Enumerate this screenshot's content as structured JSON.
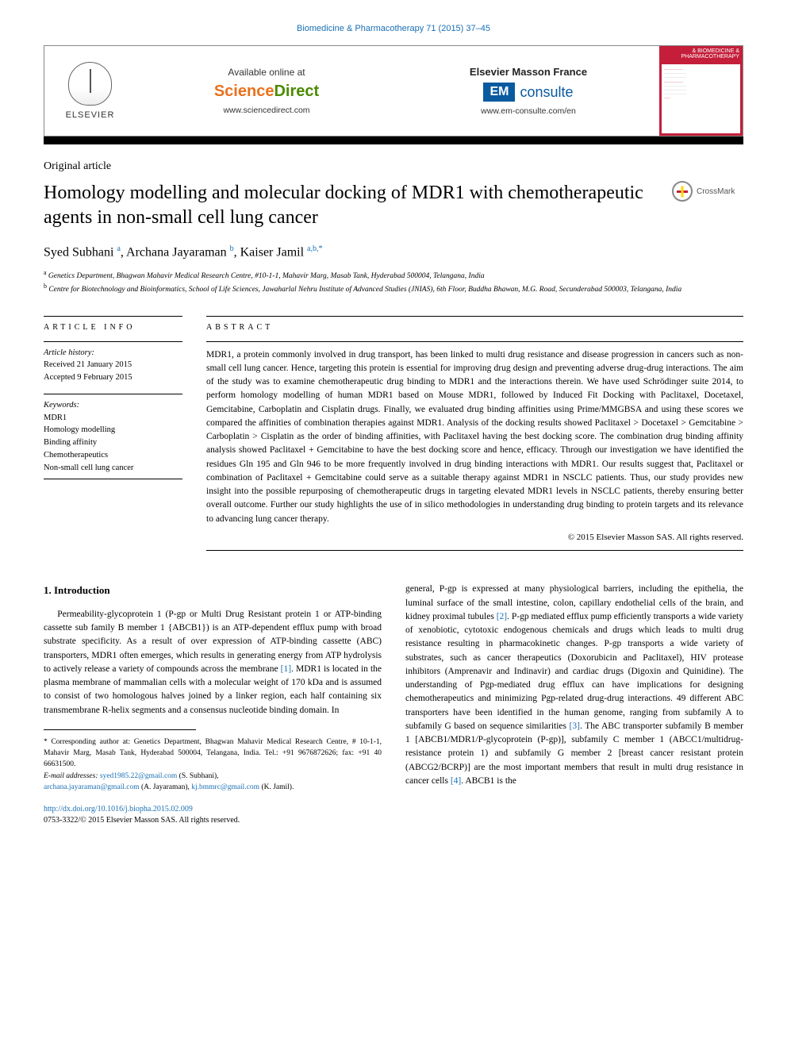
{
  "journal_ref": {
    "text": "Biomedicine & Pharmacotherapy 71 (2015) 37–45",
    "link_text": "Biomedicine & Pharmacotherapy"
  },
  "banner": {
    "elsevier": "ELSEVIER",
    "available": "Available online at",
    "sd_science": "Science",
    "sd_direct": "Direct",
    "sd_url": "www.sciencedirect.com",
    "em_title": "Elsevier Masson France",
    "em_box": "EM",
    "em_text": "consulte",
    "em_url": "www.em-consulte.com/en",
    "journal_cover_title": "& BIOMEDICINE\n& PHARMACOTHERAPY"
  },
  "article_type": "Original article",
  "title": "Homology modelling and molecular docking of MDR1 with chemotherapeutic agents in non-small cell lung cancer",
  "crossmark": "CrossMark",
  "authors_html": "Syed Subhani <sup>a</sup>, Archana Jayaraman <sup>b</sup>, Kaiser Jamil <sup>a,b,*</sup>",
  "affiliations": {
    "a": "Genetics Department, Bhagwan Mahavir Medical Research Centre, #10-1-1, Mahavir Marg, Masab Tank, Hyderabad 500004, Telangana, India",
    "b": "Centre for Biotechnology and Bioinformatics, School of Life Sciences, Jawaharlal Nehru Institute of Advanced Studies (JNIAS), 6th Floor, Buddha Bhawan, M.G. Road, Secunderabad 500003, Telangana, India"
  },
  "article_info": {
    "head": "ARTICLE INFO",
    "history_label": "Article history:",
    "received": "Received 21 January 2015",
    "accepted": "Accepted 9 February 2015",
    "keywords_label": "Keywords:",
    "keywords": [
      "MDR1",
      "Homology modelling",
      "Binding affinity",
      "Chemotherapeutics",
      "Non-small cell lung cancer"
    ]
  },
  "abstract": {
    "head": "ABSTRACT",
    "text": "MDR1, a protein commonly involved in drug transport, has been linked to multi drug resistance and disease progression in cancers such as non-small cell lung cancer. Hence, targeting this protein is essential for improving drug design and preventing adverse drug-drug interactions. The aim of the study was to examine chemotherapeutic drug binding to MDR1 and the interactions therein. We have used Schrödinger suite 2014, to perform homology modelling of human MDR1 based on Mouse MDR1, followed by Induced Fit Docking with Paclitaxel, Docetaxel, Gemcitabine, Carboplatin and Cisplatin drugs. Finally, we evaluated drug binding affinities using Prime/MMGBSA and using these scores we compared the affinities of combination therapies against MDR1. Analysis of the docking results showed Paclitaxel > Docetaxel > Gemcitabine > Carboplatin > Cisplatin as the order of binding affinities, with Paclitaxel having the best docking score. The combination drug binding affinity analysis showed Paclitaxel + Gemcitabine to have the best docking score and hence, efficacy. Through our investigation we have identified the residues Gln 195 and Gln 946 to be more frequently involved in drug binding interactions with MDR1. Our results suggest that, Paclitaxel or combination of Paclitaxel + Gemcitabine could serve as a suitable therapy against MDR1 in NSCLC patients. Thus, our study provides new insight into the possible repurposing of chemotherapeutic drugs in targeting elevated MDR1 levels in NSCLC patients, thereby ensuring better overall outcome. Further our study highlights the use of in silico methodologies in understanding drug binding to protein targets and its relevance to advancing lung cancer therapy.",
    "copyright": "© 2015 Elsevier Masson SAS. All rights reserved."
  },
  "body": {
    "section_heading": "1. Introduction",
    "col1_p1": "Permeability-glycoprotein 1 (P-gp or Multi Drug Resistant protein 1 or ATP-binding cassette sub family B member 1 {ABCB1}) is an ATP-dependent efflux pump with broad substrate specificity. As a result of over expression of ATP-binding cassette (ABC) transporters, MDR1 often emerges, which results in generating energy from ATP hydrolysis to actively release a variety of compounds across the membrane ",
    "ref1": "[1]",
    "col1_p1b": ". MDR1 is located in the plasma membrane of mammalian cells with a molecular weight of 170 kDa and is assumed to consist of two homologous halves joined by a linker region, each half containing six transmembrane R-helix segments and a consensus nucleotide binding domain. In",
    "col2_p1": "general, P-gp is expressed at many physiological barriers, including the epithelia, the luminal surface of the small intestine, colon, capillary endothelial cells of the brain, and kidney proximal tubules ",
    "ref2": "[2]",
    "col2_p1b": ". P-gp mediated efflux pump efficiently transports a wide variety of xenobiotic, cytotoxic endogenous chemicals and drugs which leads to multi drug resistance resulting in pharmacokinetic changes. P-gp transports a wide variety of substrates, such as cancer therapeutics (Doxorubicin and Paclitaxel), HIV protease inhibitors (Amprenavir and Indinavir) and cardiac drugs (Digoxin and Quinidine). The understanding of Pgp-mediated drug efflux can have implications for designing chemotherapeutics and minimizing Pgp-related drug-drug interactions. 49 different ABC transporters have been identified in the human genome, ranging from subfamily A to subfamily G based on sequence similarities ",
    "ref3": "[3]",
    "col2_p1c": ". The ABC transporter subfamily B member 1 [ABCB1/MDR1/P-glycoprotein (P-gp)], subfamily C member 1 (ABCC1/multidrug-resistance protein 1) and subfamily G member 2 [breast cancer resistant protein (ABCG2/BCRP)] are the most important members that result in multi drug resistance in cancer cells ",
    "ref4": "[4]",
    "col2_p1d": ". ABCB1 is the"
  },
  "footnotes": {
    "corresponding": "* Corresponding author at: Genetics Department, Bhagwan Mahavir Medical Research Centre, # 10-1-1, Mahavir Marg, Masab Tank, Hyderabad 500004, Telangana, India. Tel.: +91 9676872626; fax: +91 40 66631500.",
    "email_label": "E-mail addresses: ",
    "em1": "syed1985.22@gmail.com",
    "em1_who": " (S. Subhani), ",
    "em2": "archana.jayaraman@gmail.com",
    "em2_who": " (A. Jayaraman), ",
    "em3": "kj.bmmrc@gmail.com",
    "em3_who": " (K. Jamil)."
  },
  "bottom": {
    "doi": "http://dx.doi.org/10.1016/j.biopha.2015.02.009",
    "issn_line": "0753-3322/© 2015 Elsevier Masson SAS. All rights reserved."
  },
  "colors": {
    "link": "#1a6fb5",
    "elsevier_orange": "#e9711c",
    "sd_green": "#4b8b00",
    "em_blue": "#0a5aa0",
    "journal_red": "#c41e3a",
    "crossmark_yellow": "#ffd700"
  }
}
